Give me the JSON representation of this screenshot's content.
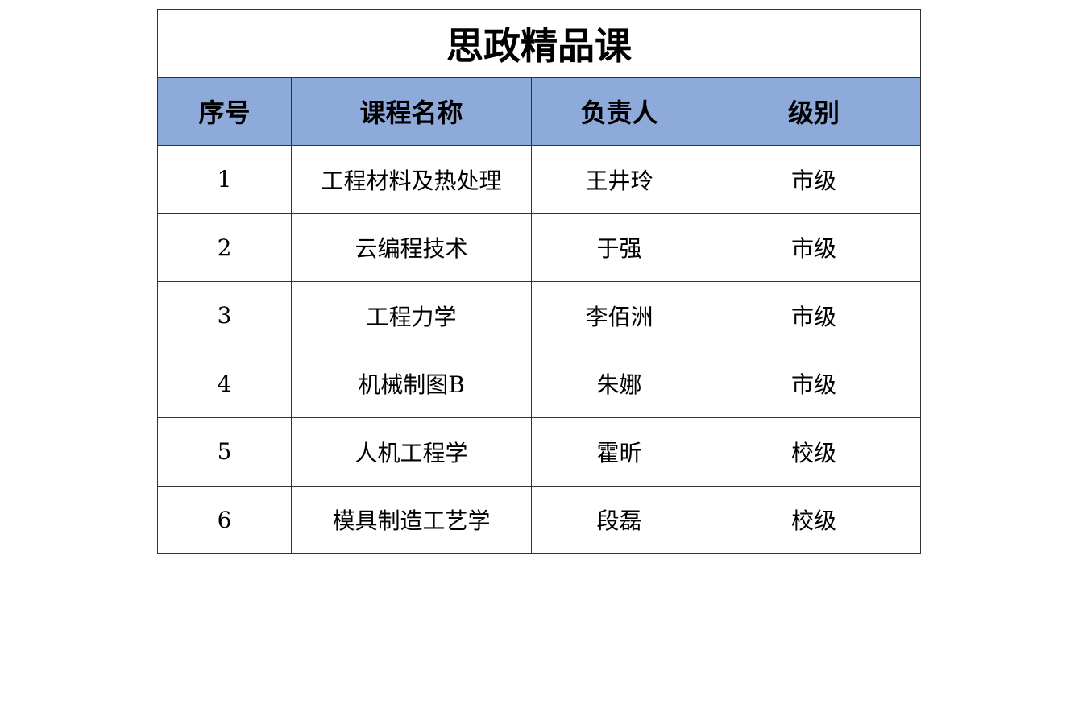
{
  "title": "思政精品课",
  "colors": {
    "header_bg": "#8eaadb",
    "border": "#333333"
  },
  "columns": [
    "序号",
    "课程名称",
    "负责人",
    "级别"
  ],
  "rows": [
    [
      "1",
      "工程材料及热处理",
      "王井玲",
      "市级"
    ],
    [
      "2",
      "云编程技术",
      "于强",
      "市级"
    ],
    [
      "3",
      "工程力学",
      "李佰洲",
      "市级"
    ],
    [
      "4",
      "机械制图B",
      "朱娜",
      "市级"
    ],
    [
      "5",
      "人机工程学",
      "霍昕",
      "校级"
    ],
    [
      "6",
      "模具制造工艺学",
      "段磊",
      "校级"
    ]
  ]
}
